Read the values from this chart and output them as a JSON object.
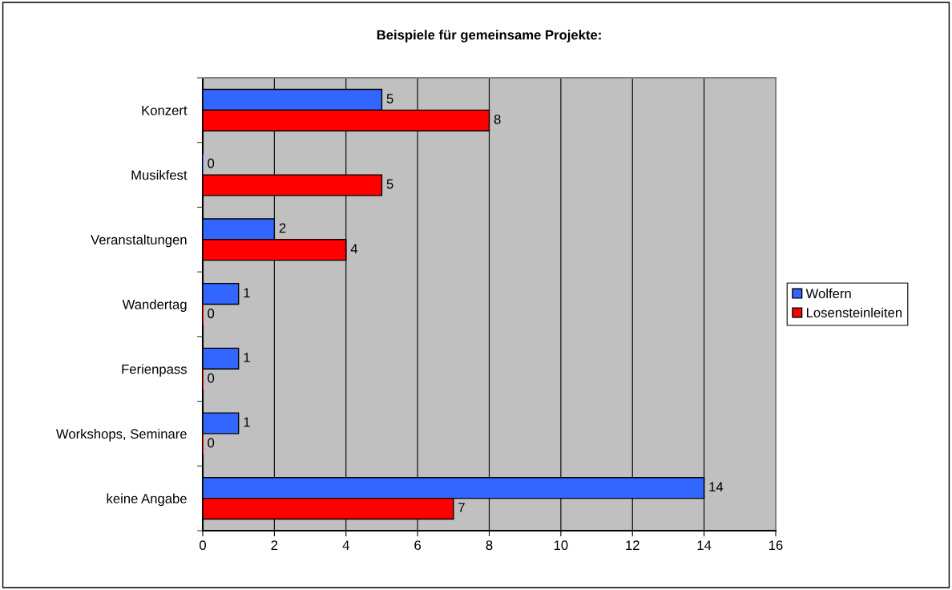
{
  "chart_data": {
    "type": "bar",
    "orientation": "horizontal",
    "title": "Beispiele für gemeinsame Projekte:",
    "categories": [
      "Konzert",
      "Musikfest",
      "Veranstaltungen",
      "Wandertag",
      "Ferienpass",
      "Workshops, Seminare",
      "keine Angabe"
    ],
    "series": [
      {
        "name": "Wolfern",
        "color": "#3366ff",
        "values": [
          5,
          0,
          2,
          1,
          1,
          1,
          14
        ]
      },
      {
        "name": "Losensteinleiten",
        "color": "#ff0000",
        "values": [
          8,
          5,
          4,
          0,
          0,
          0,
          7
        ]
      }
    ],
    "xlim": [
      0,
      16
    ],
    "xticks": [
      0,
      2,
      4,
      6,
      8,
      10,
      12,
      14,
      16
    ],
    "grid": "x",
    "legend": "right",
    "data_labels": true
  }
}
